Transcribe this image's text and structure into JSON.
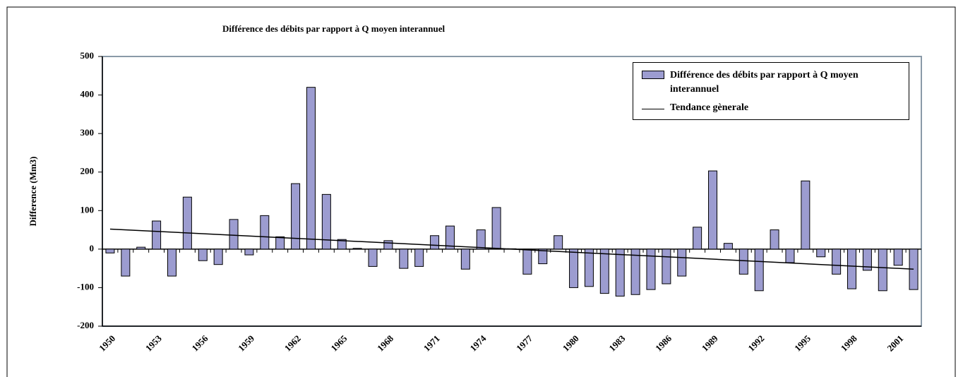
{
  "chart_data": {
    "type": "bar",
    "title": "Différence des débits par rapport à Q moyen interannuel",
    "y_label": "Difference (Mm3)",
    "categories": [
      "1950",
      null,
      null,
      "1953",
      null,
      null,
      "1956",
      null,
      null,
      "1959",
      null,
      null,
      "1962",
      null,
      null,
      "1965",
      null,
      null,
      "1968",
      null,
      null,
      "1971",
      null,
      null,
      "1974",
      null,
      null,
      "1977",
      null,
      null,
      "1980",
      null,
      null,
      "1983",
      null,
      null,
      "1986",
      null,
      null,
      "1989",
      null,
      null,
      "1992",
      null,
      null,
      "1995",
      null,
      null,
      "1998",
      null,
      null,
      "2001",
      null
    ],
    "series": [
      {
        "name": "Différence des débits par rapport à Q moyen interannuel",
        "color": "#9c9cd0",
        "values": [
          -10,
          -70,
          5,
          73,
          -70,
          135,
          -30,
          -40,
          77,
          -15,
          87,
          32,
          170,
          420,
          142,
          25,
          2,
          -45,
          22,
          -50,
          -45,
          35,
          60,
          -52,
          50,
          108,
          1,
          -65,
          -38,
          35,
          -100,
          -97,
          -115,
          -122,
          -118,
          -105,
          -90,
          -70,
          57,
          203,
          15,
          -65,
          -108,
          50,
          -35,
          177,
          -20,
          -65,
          -103,
          -55,
          -108,
          -42,
          -105
        ]
      }
    ],
    "trend": {
      "name": "Tendance gènerale",
      "color": "#000000",
      "start": 52,
      "end": -52
    },
    "ylim": [
      -200,
      500
    ],
    "yticks": [
      -200,
      -100,
      0,
      100,
      200,
      300,
      400,
      500
    ]
  }
}
